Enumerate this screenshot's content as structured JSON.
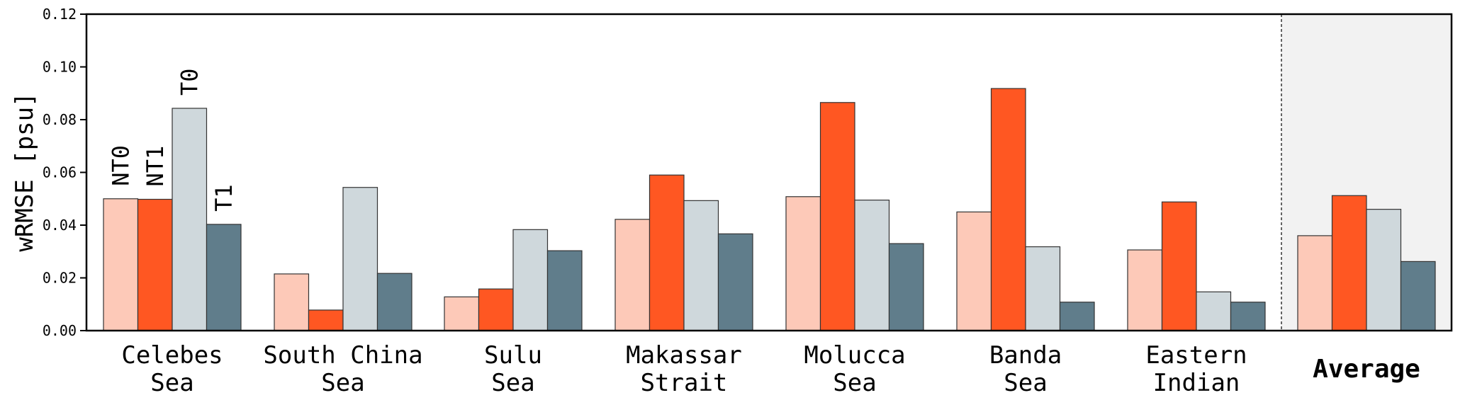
{
  "chart_data": {
    "type": "bar",
    "ylabel": "wRMSE [psu]",
    "ylim": [
      0,
      0.12
    ],
    "yticks": [
      "0.00",
      "0.02",
      "0.04",
      "0.06",
      "0.08",
      "0.10",
      "0.12"
    ],
    "categories": [
      {
        "line1": "Celebes",
        "line2": "Sea"
      },
      {
        "line1": "South China",
        "line2": "Sea"
      },
      {
        "line1": "Sulu",
        "line2": "Sea"
      },
      {
        "line1": "Makassar",
        "line2": "Strait"
      },
      {
        "line1": "Molucca",
        "line2": "Sea"
      },
      {
        "line1": "Banda",
        "line2": "Sea"
      },
      {
        "line1": "Eastern",
        "line2": "Indian"
      }
    ],
    "average_label": "Average",
    "series": [
      {
        "name": "NT0",
        "color": "#fdc9b8",
        "values": [
          0.05,
          0.0215,
          0.0128,
          0.0422,
          0.0508,
          0.045,
          0.0306
        ],
        "average": 0.036
      },
      {
        "name": "NT1",
        "color": "#ff5722",
        "values": [
          0.0498,
          0.0078,
          0.0158,
          0.059,
          0.0865,
          0.0918,
          0.0488
        ],
        "average": 0.0512
      },
      {
        "name": "T0",
        "color": "#cfd8dc",
        "values": [
          0.0843,
          0.0543,
          0.0383,
          0.0493,
          0.0495,
          0.0318,
          0.0147
        ],
        "average": 0.046
      },
      {
        "name": "T1",
        "color": "#607d8b",
        "values": [
          0.0403,
          0.0217,
          0.0303,
          0.0367,
          0.033,
          0.0108,
          0.0108
        ],
        "average": 0.0262
      }
    ],
    "grid": false,
    "legend": "labels above first group bars"
  }
}
